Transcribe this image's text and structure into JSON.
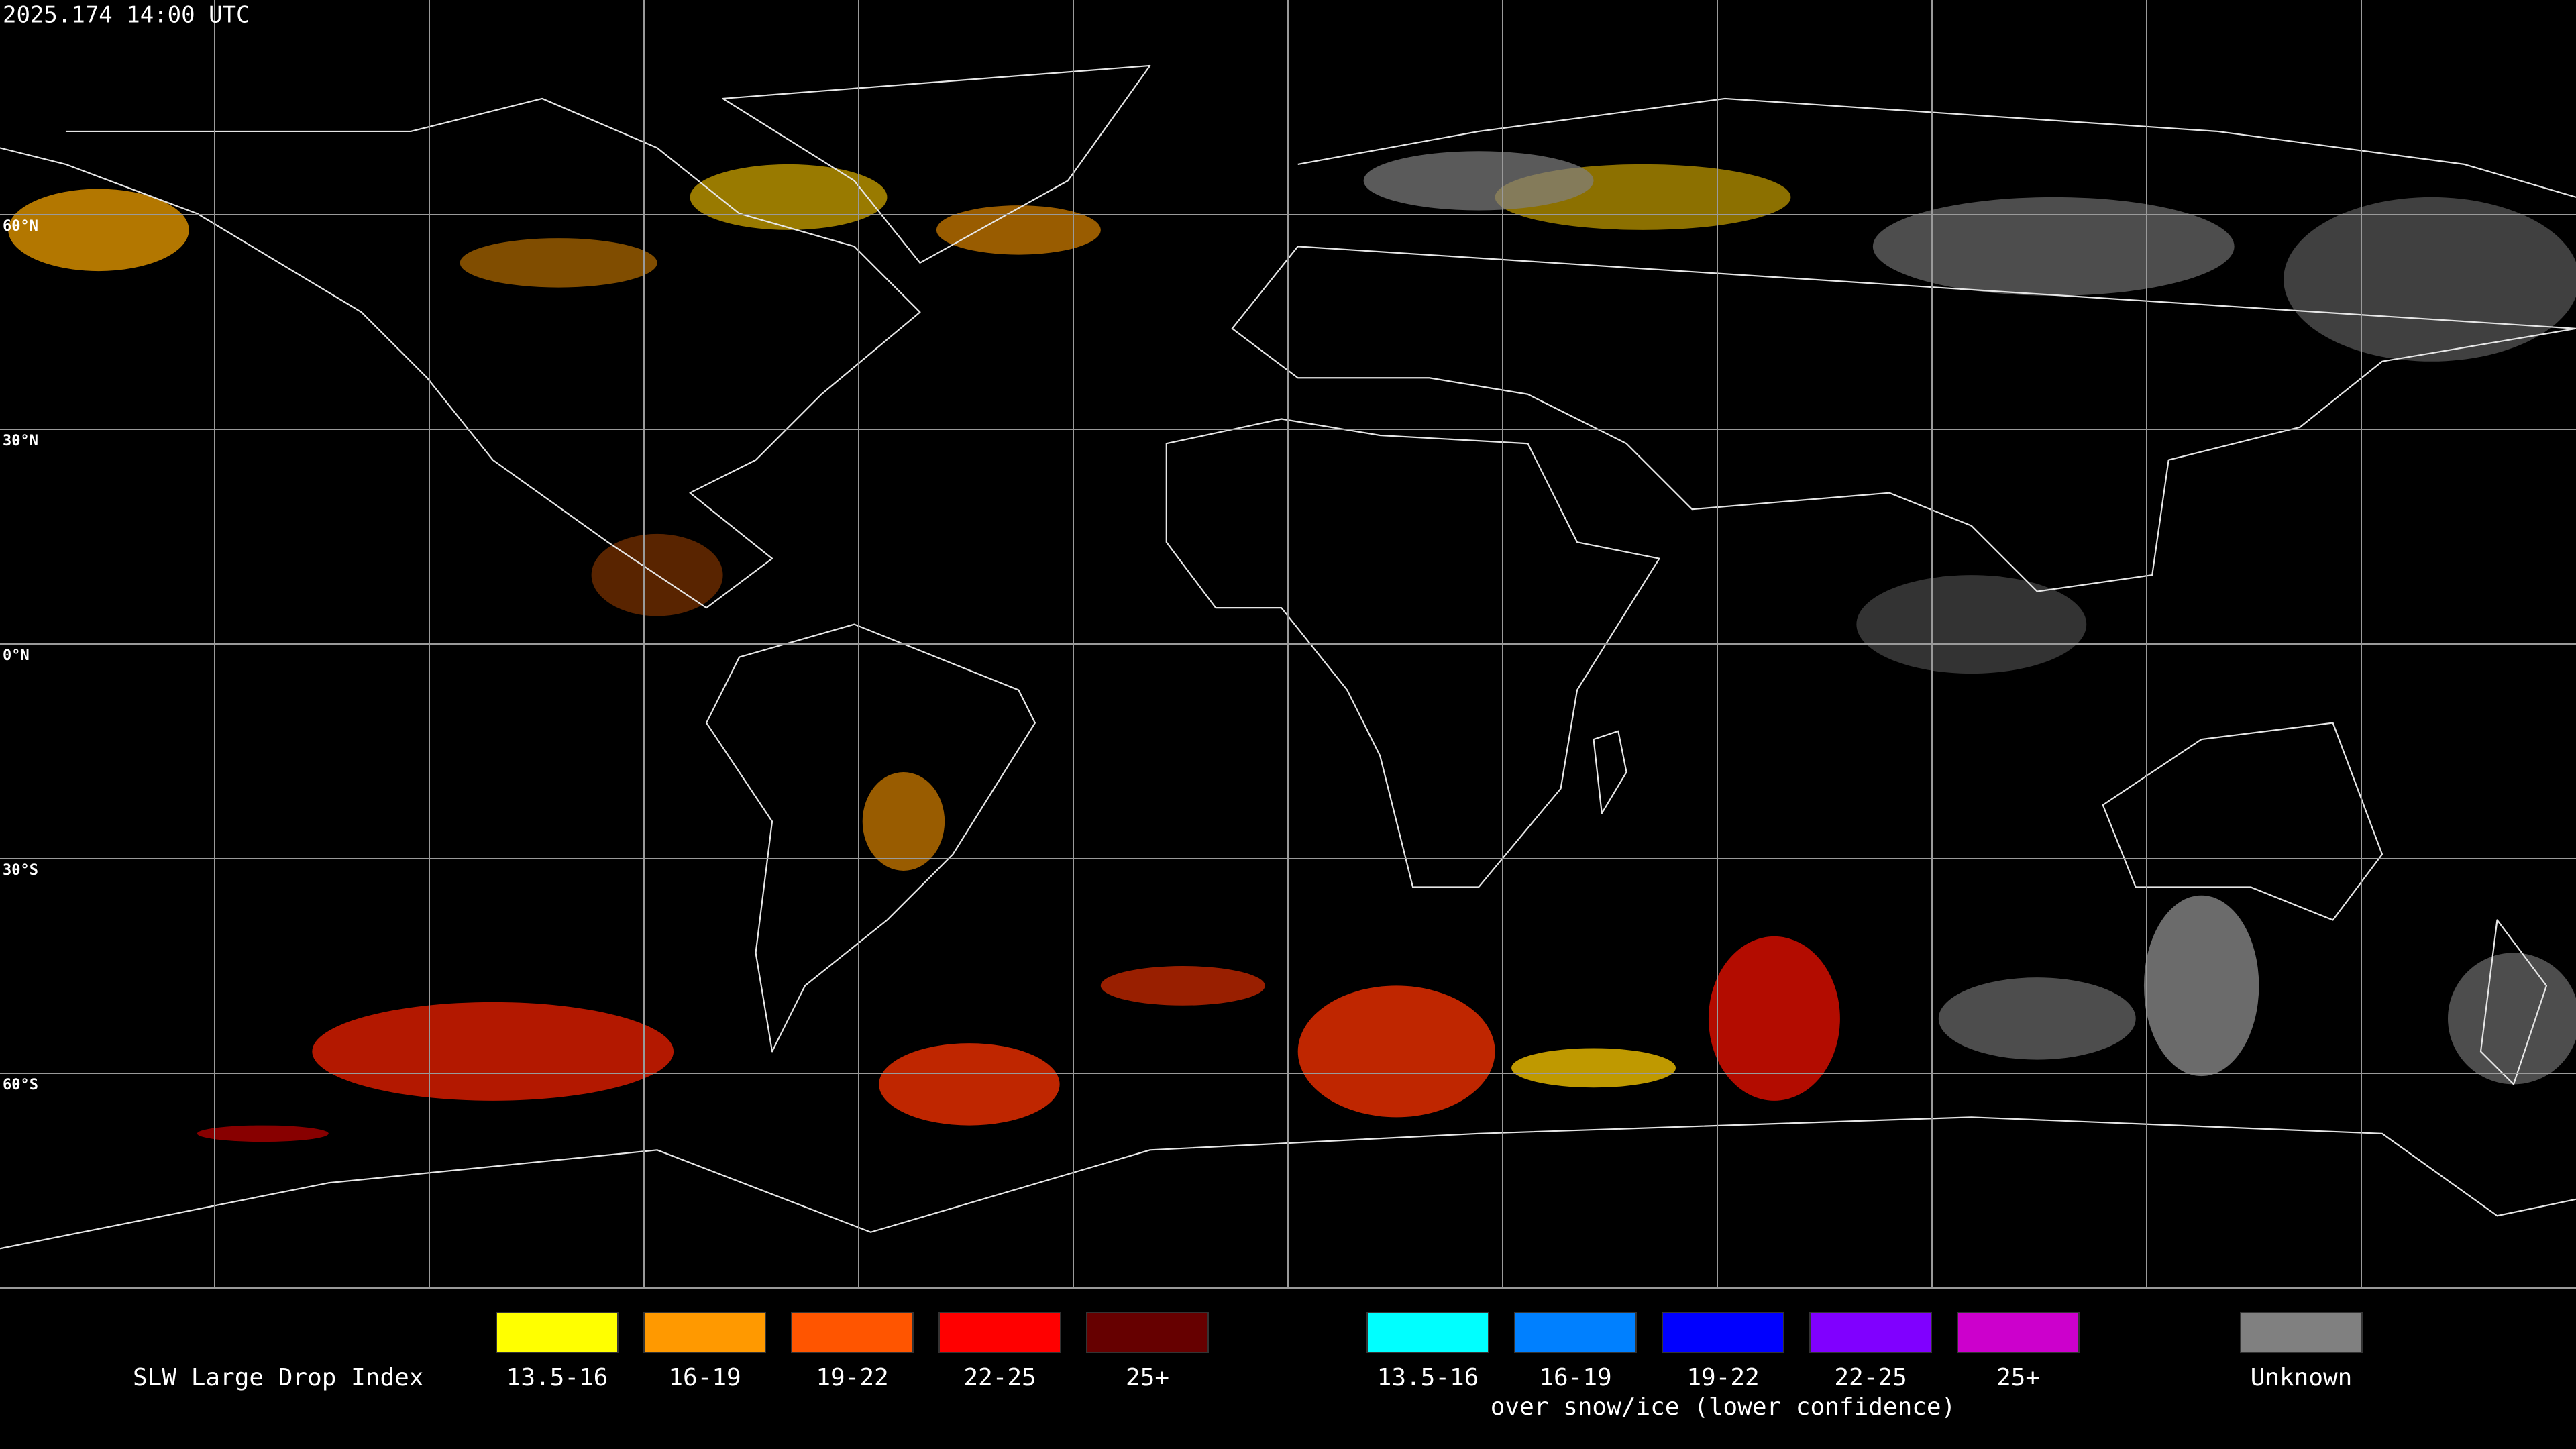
{
  "header": {
    "timestamp": "2025.174 14:00 UTC"
  },
  "map": {
    "lat_labels": [
      "60°N",
      "30°N",
      "0°N",
      "30°S",
      "60°S"
    ]
  },
  "legend": {
    "title": "SLW Large Drop Index",
    "groups": [
      {
        "items": [
          {
            "label": "13.5-16",
            "color": "#ffff00"
          },
          {
            "label": "16-19",
            "color": "#ff9900"
          },
          {
            "label": "19-22",
            "color": "#ff5500"
          },
          {
            "label": "22-25",
            "color": "#ff0000"
          },
          {
            "label": "25+",
            "color": "#660000"
          }
        ]
      },
      {
        "items": [
          {
            "label": "13.5-16",
            "color": "#00ffff"
          },
          {
            "label": "16-19",
            "color": "#0080ff"
          },
          {
            "label": "19-22",
            "color": "#0000ff"
          },
          {
            "label": "22-25",
            "color": "#8000ff"
          },
          {
            "label": "25+",
            "color": "#cc00cc"
          }
        ],
        "caption": "over snow/ice (lower confidence)"
      },
      {
        "items": [
          {
            "label": "Unknown",
            "color": "#808080"
          }
        ]
      }
    ]
  }
}
